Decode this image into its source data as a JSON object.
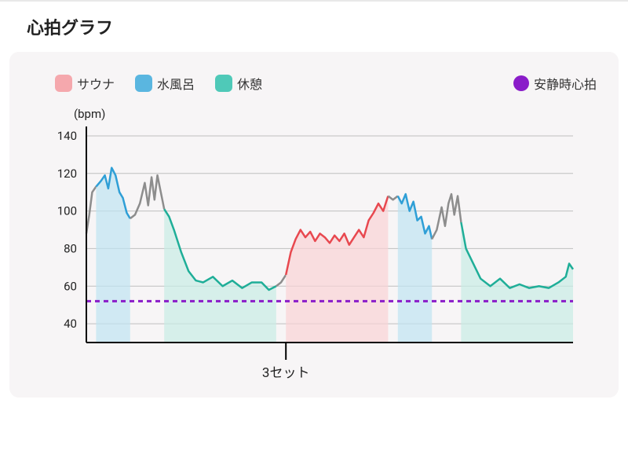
{
  "title": "心拍グラフ",
  "legend": {
    "sauna": {
      "label": "サウナ",
      "color": "#f5a8ad"
    },
    "cold": {
      "label": "水風呂",
      "color": "#5ab6e0"
    },
    "rest": {
      "label": "休憩",
      "color": "#4fc9b8"
    },
    "resting_hr": {
      "label": "安静時心拍",
      "color": "#8a1cc9"
    }
  },
  "chart": {
    "unit_label": "(bpm)",
    "ylim": [
      30,
      145
    ],
    "yticks": [
      40,
      60,
      80,
      100,
      120,
      140
    ],
    "x_extent": [
      0,
      100
    ],
    "background": "#f7f5f6",
    "grid_color": "#bfbfbf",
    "axis_color": "#000000",
    "resting_hr": {
      "value": 52,
      "color": "#8a1cc9",
      "dash": "6,5",
      "width": 3
    },
    "segments": [
      {
        "kind": "gray",
        "start": 0,
        "end": 2
      },
      {
        "kind": "cold",
        "start": 2,
        "end": 9
      },
      {
        "kind": "gray",
        "start": 9,
        "end": 16
      },
      {
        "kind": "rest",
        "start": 16,
        "end": 39
      },
      {
        "kind": "gray",
        "start": 39,
        "end": 41
      },
      {
        "kind": "sauna",
        "start": 41,
        "end": 62
      },
      {
        "kind": "gray",
        "start": 62,
        "end": 64
      },
      {
        "kind": "cold",
        "start": 64,
        "end": 71
      },
      {
        "kind": "gray",
        "start": 71,
        "end": 77
      },
      {
        "kind": "rest",
        "start": 77,
        "end": 100
      }
    ],
    "line": [
      [
        0,
        88
      ],
      [
        0.6,
        98
      ],
      [
        1.2,
        110
      ],
      [
        2,
        113
      ],
      [
        3,
        116
      ],
      [
        3.8,
        119
      ],
      [
        4.5,
        112
      ],
      [
        5.2,
        123
      ],
      [
        6,
        119
      ],
      [
        6.8,
        110
      ],
      [
        7.5,
        107
      ],
      [
        8.3,
        99
      ],
      [
        9,
        96
      ],
      [
        10,
        98
      ],
      [
        11,
        104
      ],
      [
        12,
        115
      ],
      [
        12.7,
        103
      ],
      [
        13.4,
        118
      ],
      [
        14,
        106
      ],
      [
        14.6,
        119
      ],
      [
        15.3,
        110
      ],
      [
        16,
        101
      ],
      [
        17,
        97
      ],
      [
        18,
        90
      ],
      [
        19.5,
        78
      ],
      [
        21,
        68
      ],
      [
        22.5,
        63
      ],
      [
        24,
        62
      ],
      [
        26,
        65
      ],
      [
        28,
        60
      ],
      [
        30,
        63
      ],
      [
        32,
        59
      ],
      [
        34,
        62
      ],
      [
        36,
        62
      ],
      [
        37.5,
        58
      ],
      [
        39,
        60
      ],
      [
        40,
        62
      ],
      [
        41,
        66
      ],
      [
        42,
        78
      ],
      [
        43,
        85
      ],
      [
        44,
        90
      ],
      [
        45,
        86
      ],
      [
        46,
        89
      ],
      [
        47,
        84
      ],
      [
        48,
        88
      ],
      [
        49,
        86
      ],
      [
        50,
        83
      ],
      [
        51,
        87
      ],
      [
        52,
        84
      ],
      [
        53,
        88
      ],
      [
        54,
        82
      ],
      [
        55,
        86
      ],
      [
        56,
        90
      ],
      [
        57,
        86
      ],
      [
        58,
        95
      ],
      [
        59,
        99
      ],
      [
        60,
        104
      ],
      [
        61,
        100
      ],
      [
        62,
        108
      ],
      [
        63,
        106
      ],
      [
        64,
        108
      ],
      [
        64.8,
        104
      ],
      [
        65.6,
        109
      ],
      [
        66.4,
        100
      ],
      [
        67.2,
        105
      ],
      [
        68,
        95
      ],
      [
        68.8,
        97
      ],
      [
        69.6,
        88
      ],
      [
        70.4,
        92
      ],
      [
        71,
        85
      ],
      [
        72,
        90
      ],
      [
        73,
        102
      ],
      [
        73.7,
        92
      ],
      [
        74.4,
        104
      ],
      [
        75,
        109
      ],
      [
        75.6,
        98
      ],
      [
        76.3,
        108
      ],
      [
        77,
        94
      ],
      [
        78,
        80
      ],
      [
        79.5,
        72
      ],
      [
        81,
        64
      ],
      [
        83,
        60
      ],
      [
        85,
        64
      ],
      [
        87,
        59
      ],
      [
        89,
        61
      ],
      [
        91,
        59
      ],
      [
        93,
        60
      ],
      [
        95,
        59
      ],
      [
        97,
        62
      ],
      [
        98.5,
        65
      ],
      [
        99.2,
        72
      ],
      [
        100,
        69
      ]
    ],
    "colors": {
      "sauna": {
        "fill": "#f9d3d6",
        "stroke": "#e8484f",
        "fill_opacity": 0.7
      },
      "cold": {
        "fill": "#bfe4f2",
        "stroke": "#2f9fd6",
        "fill_opacity": 0.7
      },
      "rest": {
        "fill": "#c7ede6",
        "stroke": "#1fae98",
        "fill_opacity": 0.7
      },
      "gray": {
        "fill": "none",
        "stroke": "#8d8d8d",
        "fill_opacity": 0
      }
    },
    "line_width": 2.5,
    "xlabel": {
      "text": "3セット",
      "tick_x": 41
    }
  }
}
